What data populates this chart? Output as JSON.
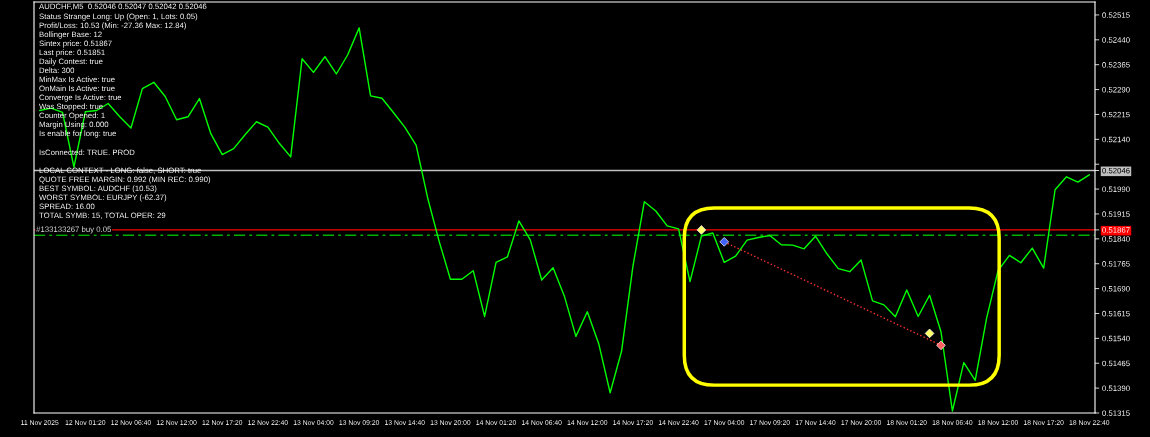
{
  "chart_data": {
    "type": "line",
    "title": "AUDCHF,M5  0.52046 0.52047 0.52042 0.52046",
    "annotations": [
      "Status Strange Long: Up (Open: 1, Lots: 0.05)",
      "Profit/Loss: 10.53 (Min: -27.36 Max: 12.84)",
      "Bollinger Base: 12",
      "Sintex price: 0.51867",
      "Last price: 0.51851",
      "Daily Contest: true",
      "Delta: 300",
      "MinMax Is Active: true",
      "OnMain Is Active: true",
      "Converge Is Active: true",
      "Was Stopped: true",
      "Counter Opened: 1",
      "Margin Using: 0.000",
      "Is enable for long: true",
      "IsConnected: TRUE. PROD",
      "LOCAL CONTEXT - LONG: false, SHORT: true",
      "QUOTE FREE MARGIN: 0.992 (MIN REC: 0.990)",
      "BEST SYMBOL: AUDCHF (10.53)",
      "WORST SYMBOL: EURJPY (-62.37)",
      "SPREAD: 16.00",
      "TOTAL SYMB: 15, TOTAL OPER: 29"
    ],
    "categories": [
      "11 Nov 2025",
      null,
      null,
      null,
      "12 Nov 01:20",
      null,
      null,
      null,
      "12 Nov 06:40",
      null,
      null,
      null,
      "12 Nov 12:00",
      null,
      null,
      null,
      "12 Nov 17:20",
      null,
      null,
      null,
      "12 Nov 22:40",
      null,
      null,
      null,
      "13 Nov 04:00",
      null,
      null,
      null,
      "13 Nov 09:20",
      null,
      null,
      null,
      "13 Nov 14:40",
      null,
      null,
      null,
      "13 Nov 20:00",
      null,
      null,
      null,
      "14 Nov 01:20",
      null,
      null,
      null,
      "14 Nov 06:40",
      null,
      null,
      null,
      "14 Nov 12:00",
      null,
      null,
      null,
      "14 Nov 17:20",
      null,
      null,
      null,
      "14 Nov 22:40",
      null,
      null,
      null,
      "17 Nov 04:00",
      null,
      null,
      null,
      "17 Nov 09:20",
      null,
      null,
      null,
      "17 Nov 14:40",
      null,
      null,
      null,
      "17 Nov 20:00",
      null,
      null,
      null,
      "18 Nov 01:20",
      null,
      null,
      null,
      "18 Nov 06:40",
      null,
      null,
      null,
      "18 Nov 12:00",
      null,
      null,
      null,
      "18 Nov 17:20",
      null,
      null,
      null,
      "18 Nov 22:40"
    ],
    "ylim": [
      0.51315,
      0.52554
    ],
    "yticks": [
      {
        "value": 0.51315,
        "label": "0.51315"
      },
      {
        "value": 0.5139,
        "label": "0.51390"
      },
      {
        "value": 0.51465,
        "label": "0.51465"
      },
      {
        "value": 0.5154,
        "label": "0.51540"
      },
      {
        "value": 0.51615,
        "label": "0.51615"
      },
      {
        "value": 0.5169,
        "label": "0.51690"
      },
      {
        "value": 0.51765,
        "label": "0.51765"
      },
      {
        "value": 0.5184,
        "label": "0.51840"
      },
      {
        "value": 0.51867,
        "label": "0.51867"
      },
      {
        "value": 0.51915,
        "label": "0.51915"
      },
      {
        "value": 0.5199,
        "label": "0.51990"
      },
      {
        "value": 0.52046,
        "label": "0.52046"
      },
      {
        "value": 0.52065,
        "label": null
      },
      {
        "value": 0.5214,
        "label": "0.52140"
      },
      {
        "value": 0.52215,
        "label": "0.52215"
      },
      {
        "value": 0.5229,
        "label": "0.52290"
      },
      {
        "value": 0.52365,
        "label": "0.52365"
      },
      {
        "value": 0.5244,
        "label": "0.52440"
      },
      {
        "value": 0.52515,
        "label": "0.52515"
      }
    ],
    "ref_lines": [
      {
        "axis": "y",
        "value": 0.52046,
        "color": "#c0c0c0",
        "line_style": "solid"
      },
      {
        "axis": "y",
        "value": 0.51867,
        "label": "#133133267 buy 0.05",
        "color": "#ff0000",
        "line_style": "solid"
      },
      {
        "axis": "y",
        "value": 0.51851,
        "color": "#00b000",
        "line_style": "dashed"
      }
    ],
    "series": [
      {
        "color": "#00ff00",
        "line_style": "solid",
        "values": [
          0.52227,
          0.52234,
          0.52221,
          0.52056,
          0.52223,
          0.52227,
          0.52248,
          0.52209,
          0.52174,
          0.52293,
          0.52312,
          0.52269,
          0.52199,
          0.52208,
          0.52263,
          0.52157,
          0.52094,
          0.52112,
          0.52154,
          0.52193,
          0.52177,
          0.52128,
          0.52087,
          0.52383,
          0.52342,
          0.52389,
          0.52337,
          0.52395,
          0.52476,
          0.52271,
          0.52264,
          0.52221,
          0.52177,
          0.52122,
          0.51964,
          0.51834,
          0.51718,
          0.51718,
          0.51744,
          0.51606,
          0.51769,
          0.51786,
          0.51894,
          0.51837,
          0.51716,
          0.51753,
          0.51666,
          0.51546,
          0.5162,
          0.51524,
          0.51376,
          0.51501,
          0.51758,
          0.51952,
          0.51924,
          0.51879,
          0.5187,
          0.51711,
          0.51848,
          0.51858,
          0.51769,
          0.51788,
          0.51836,
          0.51844,
          0.5185,
          0.51822,
          0.51821,
          0.5181,
          0.51848,
          0.51795,
          0.5175,
          0.51741,
          0.51776,
          0.51653,
          0.51641,
          0.51605,
          0.51686,
          0.51606,
          0.5167,
          0.5156,
          0.51321,
          0.51467,
          0.51413,
          0.51601,
          0.51744,
          0.5179,
          0.51768,
          0.51812,
          0.51752,
          0.51988,
          0.52027,
          0.52011,
          0.52033
        ]
      },
      {
        "type": "line",
        "color": "#ff3030",
        "line_style": "dotted",
        "values": [
          null,
          null,
          null,
          null,
          null,
          null,
          null,
          null,
          null,
          null,
          null,
          null,
          null,
          null,
          null,
          null,
          null,
          null,
          null,
          null,
          null,
          null,
          null,
          null,
          null,
          null,
          null,
          null,
          null,
          null,
          null,
          null,
          null,
          null,
          null,
          null,
          null,
          null,
          null,
          null,
          null,
          null,
          null,
          null,
          null,
          null,
          null,
          null,
          null,
          null,
          null,
          null,
          null,
          null,
          null,
          null,
          null,
          null,
          null,
          null,
          0.51831,
          null,
          null,
          null,
          null,
          null,
          null,
          null,
          null,
          null,
          null,
          null,
          null,
          null,
          null,
          null,
          null,
          null,
          null,
          0.51519,
          null,
          null,
          null,
          null,
          null,
          null,
          null,
          null,
          null,
          null,
          null,
          null,
          null
        ]
      },
      {
        "type": "scatter",
        "marker": "diamond",
        "colors": [
          null,
          null,
          null,
          null,
          null,
          null,
          null,
          null,
          null,
          null,
          null,
          null,
          null,
          null,
          null,
          null,
          null,
          null,
          null,
          null,
          null,
          null,
          null,
          null,
          null,
          null,
          null,
          null,
          null,
          null,
          null,
          null,
          null,
          null,
          null,
          null,
          null,
          null,
          null,
          null,
          null,
          null,
          null,
          null,
          null,
          null,
          null,
          null,
          null,
          null,
          null,
          null,
          null,
          null,
          null,
          null,
          null,
          null,
          "#ffff66",
          null,
          "#4060ff",
          null,
          null,
          null,
          null,
          null,
          null,
          null,
          null,
          null,
          null,
          null,
          null,
          null,
          null,
          null,
          null,
          null,
          "#ffff66",
          "#ff6060",
          null,
          null,
          null,
          null,
          null,
          null,
          null,
          null,
          null,
          null,
          null,
          null,
          null
        ],
        "values": [
          null,
          null,
          null,
          null,
          null,
          null,
          null,
          null,
          null,
          null,
          null,
          null,
          null,
          null,
          null,
          null,
          null,
          null,
          null,
          null,
          null,
          null,
          null,
          null,
          null,
          null,
          null,
          null,
          null,
          null,
          null,
          null,
          null,
          null,
          null,
          null,
          null,
          null,
          null,
          null,
          null,
          null,
          null,
          null,
          null,
          null,
          null,
          null,
          null,
          null,
          null,
          null,
          null,
          null,
          null,
          null,
          null,
          null,
          0.51867,
          null,
          0.51831,
          null,
          null,
          null,
          null,
          null,
          null,
          null,
          null,
          null,
          null,
          null,
          null,
          null,
          null,
          null,
          null,
          null,
          0.51555,
          0.51519,
          null,
          null,
          null,
          null,
          null,
          null,
          null,
          null,
          null,
          null,
          null,
          null,
          null
        ]
      }
    ]
  }
}
